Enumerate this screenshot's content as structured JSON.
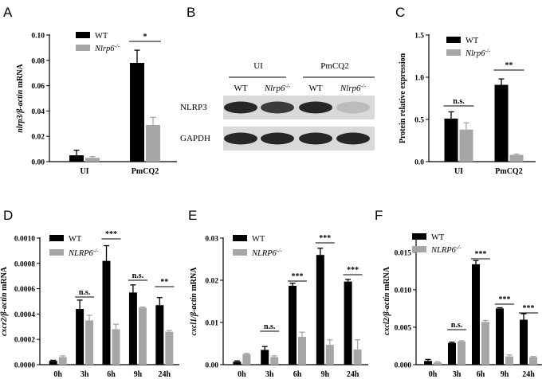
{
  "colors": {
    "wt": "#000000",
    "ko": "#a6a6a6",
    "blot_bg": "#d9d9d9",
    "band": "#1e1e1e"
  },
  "chart_data": [
    {
      "letter": "A",
      "type": "bar",
      "ylabel_it": "nlrp3/β-actin",
      "ylabel_rest": " mRNA",
      "ylim": [
        0,
        0.1
      ],
      "yticks": [
        "0.00",
        "0.02",
        "0.04",
        "0.06",
        "0.08",
        "0.10"
      ],
      "categories": [
        "UI",
        "PmCQ2"
      ],
      "series": [
        {
          "name": "WT",
          "values": [
            0.005,
            0.078
          ],
          "errors": [
            0.004,
            0.01
          ]
        },
        {
          "name": "Nlrp6",
          "sup": "-/-",
          "values": [
            0.003,
            0.029
          ],
          "errors": [
            0.001,
            0.006
          ]
        }
      ],
      "annotations": [
        {
          "text": "*",
          "category": 1
        }
      ]
    },
    {
      "letter": "C",
      "type": "bar",
      "ylabel": "Protein relative expression",
      "ylim": [
        0,
        1.5
      ],
      "yticks": [
        "0.0",
        "0.5",
        "1.0",
        "1.5"
      ],
      "categories": [
        "UI",
        "PmCQ2"
      ],
      "series": [
        {
          "name": "WT",
          "values": [
            0.51,
            0.91
          ],
          "errors": [
            0.08,
            0.07
          ]
        },
        {
          "name": "Nlrp6",
          "sup": "-/-",
          "values": [
            0.38,
            0.08
          ],
          "errors": [
            0.08,
            0.01
          ]
        }
      ],
      "annotations": [
        {
          "text": "n.s.",
          "category": 0
        },
        {
          "text": "**",
          "category": 1
        }
      ]
    },
    {
      "letter": "D",
      "type": "bar",
      "ylabel_it": "cxcr2/β-actin",
      "ylabel_rest": " mRNA",
      "ylim": [
        0,
        0.001
      ],
      "yticks": [
        "0.0000",
        "0.0002",
        "0.0004",
        "0.0006",
        "0.0008",
        "0.0010"
      ],
      "categories": [
        "0h",
        "3h",
        "6h",
        "9h",
        "24h"
      ],
      "series": [
        {
          "name": "WT",
          "values": [
            3e-05,
            0.00044,
            0.00082,
            0.00057,
            0.00047
          ],
          "errors": [
            5e-06,
            7e-05,
            0.00012,
            6e-05,
            6e-05
          ]
        },
        {
          "name": "NLRP6",
          "sup": "-/-",
          "values": [
            6e-05,
            0.00035,
            0.00028,
            0.00045,
            0.00026
          ],
          "errors": [
            1e-05,
            4e-05,
            4e-05,
            5e-06,
            1e-05
          ]
        }
      ],
      "annotations": [
        {
          "text": "n.s.",
          "category": 1
        },
        {
          "text": "***",
          "category": 2
        },
        {
          "text": "n.s.",
          "category": 3
        },
        {
          "text": "**",
          "category": 4
        }
      ]
    },
    {
      "letter": "E",
      "type": "bar",
      "ylabel_it": "cxcl1/β-actin",
      "ylabel_rest": " mRNA",
      "ylim": [
        0,
        0.03
      ],
      "yticks": [
        "0.00",
        "0.01",
        "0.02",
        "0.03"
      ],
      "categories": [
        "0h",
        "3h",
        "6h",
        "9h",
        "24h"
      ],
      "series": [
        {
          "name": "WT",
          "values": [
            0.0007,
            0.0035,
            0.0187,
            0.026,
            0.0197
          ],
          "errors": [
            0.0002,
            0.0008,
            0.0006,
            0.0016,
            0.0005
          ]
        },
        {
          "name": "NLRP6",
          "sup": "-/-",
          "values": [
            0.0025,
            0.0018,
            0.0066,
            0.0047,
            0.0036
          ],
          "errors": [
            0.0002,
            0.0003,
            0.0011,
            0.0012,
            0.0023
          ]
        }
      ],
      "annotations": [
        {
          "text": "n.s.",
          "category": 1
        },
        {
          "text": "***",
          "category": 2
        },
        {
          "text": "***",
          "category": 3
        },
        {
          "text": "***",
          "category": 4
        }
      ]
    },
    {
      "letter": "F",
      "type": "bar",
      "ylabel_it": "cxcl2/β-actin",
      "ylabel_rest": " mRNA",
      "ylim": [
        0,
        0.017
      ],
      "yticks": [
        "0.000",
        "0.005",
        "0.010",
        "0.015"
      ],
      "categories": [
        "0h",
        "3h",
        "6h",
        "9h",
        "24h"
      ],
      "series": [
        {
          "name": "WT",
          "values": [
            0.0005,
            0.0029,
            0.0134,
            0.0075,
            0.006
          ],
          "errors": [
            0.0002,
            0.0001,
            0.0005,
            0.0001,
            0.0008
          ]
        },
        {
          "name": "NLRP6",
          "sup": "-/-",
          "values": [
            0.0003,
            0.0031,
            0.0057,
            0.0011,
            0.001
          ],
          "errors": [
            0.0001,
            0.0001,
            0.0002,
            0.0002,
            0.0001
          ]
        }
      ],
      "annotations": [
        {
          "text": "n.s.",
          "category": 1
        },
        {
          "text": "***",
          "category": 2
        },
        {
          "text": "***",
          "category": 3
        },
        {
          "text": "***",
          "category": 4
        }
      ]
    }
  ],
  "blot": {
    "letter": "B",
    "group_labels": [
      "UI",
      "PmCQ2"
    ],
    "lane_labels": [
      "WT",
      "Nlrp6",
      "WT",
      "Nlrp6"
    ],
    "lane_sup": "-/-",
    "rows": [
      {
        "label": "NLRP3",
        "intensities": [
          0.95,
          0.85,
          0.95,
          0.15
        ]
      },
      {
        "label": "GAPDH",
        "intensities": [
          0.95,
          0.95,
          0.95,
          0.95
        ]
      }
    ]
  }
}
